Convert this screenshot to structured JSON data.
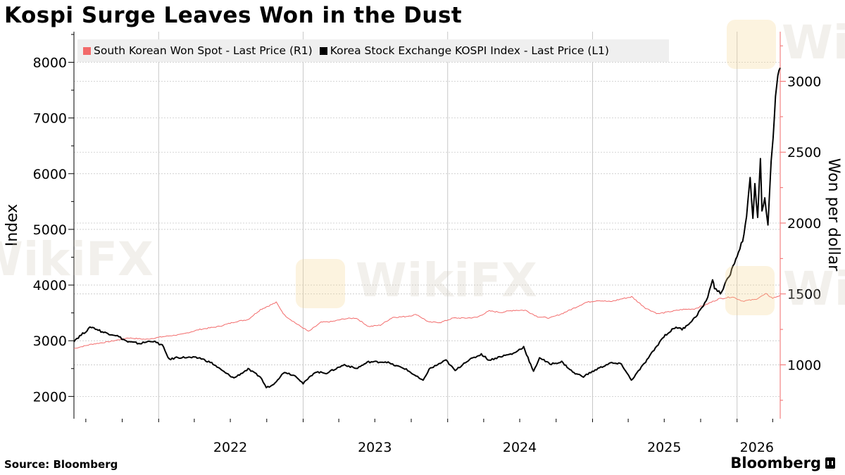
{
  "header": {
    "title": "Kospi Surge Leaves Won in the Dust"
  },
  "footer": {
    "source": "Source: Bloomberg",
    "brand": "Bloomberg"
  },
  "watermark": {
    "text": "WikiFX"
  },
  "colors": {
    "won": "#f26a6a",
    "kospi": "#000000",
    "axis_right": "#f26a6a",
    "grid": "#c8c8c8",
    "legend_bg": "#efefef"
  },
  "chart_data": {
    "type": "line",
    "title": "Kospi Surge Leaves Won in the Dust",
    "legend": {
      "placement": "top-left",
      "items": [
        {
          "name": "South Korean Won Spot - Last Price (R1)",
          "color": "#f26a6a"
        },
        {
          "name": "Korea Stock Exchange KOSPI Index - Last Price (L1)",
          "color": "#000000"
        }
      ]
    },
    "grid": true,
    "x": {
      "range": [
        "2021-06-01",
        "2026-04-20"
      ],
      "tick_labels": [
        "2022",
        "2023",
        "2024",
        "2025",
        "2026"
      ]
    },
    "y_left": {
      "label": "Index",
      "range": [
        1600,
        8550
      ],
      "ticks": [
        2000,
        3000,
        4000,
        5000,
        6000,
        7000,
        8000
      ]
    },
    "y_right": {
      "label": "Won per dollar",
      "range": [
        620,
        3350
      ],
      "ticks": [
        1000,
        1500,
        2000,
        2500,
        3000
      ]
    },
    "series": [
      {
        "name": "South Korean Won Spot - Last Price (R1)",
        "axis": "right",
        "points": [
          [
            "2021-06-01",
            1115
          ],
          [
            "2021-07-15",
            1145
          ],
          [
            "2021-09-01",
            1165
          ],
          [
            "2021-10-15",
            1190
          ],
          [
            "2021-12-01",
            1180
          ],
          [
            "2022-01-15",
            1200
          ],
          [
            "2022-03-01",
            1215
          ],
          [
            "2022-04-15",
            1250
          ],
          [
            "2022-06-01",
            1270
          ],
          [
            "2022-07-15",
            1305
          ],
          [
            "2022-08-15",
            1320
          ],
          [
            "2022-09-15",
            1390
          ],
          [
            "2022-10-25",
            1440
          ],
          [
            "2022-11-15",
            1350
          ],
          [
            "2022-12-15",
            1290
          ],
          [
            "2023-01-15",
            1235
          ],
          [
            "2023-02-15",
            1300
          ],
          [
            "2023-03-15",
            1305
          ],
          [
            "2023-04-15",
            1325
          ],
          [
            "2023-05-15",
            1330
          ],
          [
            "2023-06-15",
            1270
          ],
          [
            "2023-07-15",
            1280
          ],
          [
            "2023-08-15",
            1335
          ],
          [
            "2023-09-15",
            1340
          ],
          [
            "2023-10-15",
            1355
          ],
          [
            "2023-11-15",
            1300
          ],
          [
            "2023-12-15",
            1300
          ],
          [
            "2024-01-15",
            1330
          ],
          [
            "2024-02-15",
            1330
          ],
          [
            "2024-03-15",
            1335
          ],
          [
            "2024-04-15",
            1380
          ],
          [
            "2024-05-15",
            1370
          ],
          [
            "2024-06-15",
            1385
          ],
          [
            "2024-07-15",
            1385
          ],
          [
            "2024-08-15",
            1340
          ],
          [
            "2024-09-15",
            1330
          ],
          [
            "2024-10-15",
            1360
          ],
          [
            "2024-11-15",
            1400
          ],
          [
            "2024-12-15",
            1440
          ],
          [
            "2025-01-15",
            1455
          ],
          [
            "2025-02-15",
            1445
          ],
          [
            "2025-03-15",
            1465
          ],
          [
            "2025-04-10",
            1480
          ],
          [
            "2025-05-15",
            1400
          ],
          [
            "2025-06-15",
            1360
          ],
          [
            "2025-07-15",
            1375
          ],
          [
            "2025-08-15",
            1390
          ],
          [
            "2025-09-15",
            1395
          ],
          [
            "2025-10-15",
            1425
          ],
          [
            "2025-11-15",
            1465
          ],
          [
            "2025-12-20",
            1480
          ],
          [
            "2026-01-15",
            1450
          ],
          [
            "2026-02-15",
            1460
          ],
          [
            "2026-03-15",
            1500
          ],
          [
            "2026-04-01",
            1470
          ],
          [
            "2026-04-20",
            1490
          ]
        ]
      },
      {
        "name": "Korea Stock Exchange KOSPI Index - Last Price (L1)",
        "axis": "left",
        "points": [
          [
            "2021-06-01",
            3000
          ],
          [
            "2021-07-15",
            3250
          ],
          [
            "2021-08-15",
            3150
          ],
          [
            "2021-09-15",
            3100
          ],
          [
            "2021-10-15",
            2980
          ],
          [
            "2021-11-15",
            2950
          ],
          [
            "2021-12-15",
            3000
          ],
          [
            "2022-01-10",
            2920
          ],
          [
            "2022-01-28",
            2660
          ],
          [
            "2022-02-15",
            2700
          ],
          [
            "2022-03-15",
            2700
          ],
          [
            "2022-04-15",
            2690
          ],
          [
            "2022-05-15",
            2600
          ],
          [
            "2022-06-15",
            2440
          ],
          [
            "2022-07-10",
            2330
          ],
          [
            "2022-08-15",
            2490
          ],
          [
            "2022-09-15",
            2350
          ],
          [
            "2022-09-30",
            2160
          ],
          [
            "2022-10-15",
            2200
          ],
          [
            "2022-11-15",
            2440
          ],
          [
            "2022-12-15",
            2360
          ],
          [
            "2023-01-01",
            2230
          ],
          [
            "2023-01-31",
            2440
          ],
          [
            "2023-03-01",
            2420
          ],
          [
            "2023-04-15",
            2570
          ],
          [
            "2023-05-15",
            2500
          ],
          [
            "2023-06-15",
            2620
          ],
          [
            "2023-07-31",
            2620
          ],
          [
            "2023-08-15",
            2570
          ],
          [
            "2023-09-15",
            2500
          ],
          [
            "2023-10-31",
            2280
          ],
          [
            "2023-11-15",
            2490
          ],
          [
            "2023-12-28",
            2650
          ],
          [
            "2024-01-20",
            2460
          ],
          [
            "2024-02-15",
            2620
          ],
          [
            "2024-03-26",
            2760
          ],
          [
            "2024-04-15",
            2650
          ],
          [
            "2024-05-15",
            2720
          ],
          [
            "2024-06-15",
            2770
          ],
          [
            "2024-07-11",
            2890
          ],
          [
            "2024-08-05",
            2440
          ],
          [
            "2024-08-20",
            2700
          ],
          [
            "2024-09-15",
            2580
          ],
          [
            "2024-10-15",
            2620
          ],
          [
            "2024-11-15",
            2420
          ],
          [
            "2024-12-09",
            2360
          ],
          [
            "2025-01-15",
            2500
          ],
          [
            "2025-02-15",
            2600
          ],
          [
            "2025-03-15",
            2580
          ],
          [
            "2025-04-09",
            2290
          ],
          [
            "2025-05-15",
            2620
          ],
          [
            "2025-06-30",
            3080
          ],
          [
            "2025-07-31",
            3250
          ],
          [
            "2025-08-15",
            3200
          ],
          [
            "2025-09-15",
            3400
          ],
          [
            "2025-10-15",
            3700
          ],
          [
            "2025-10-31",
            4100
          ],
          [
            "2025-11-05",
            3950
          ],
          [
            "2025-11-20",
            3850
          ],
          [
            "2025-12-15",
            4200
          ],
          [
            "2026-01-15",
            4800
          ],
          [
            "2026-01-25",
            5200
          ],
          [
            "2026-02-03",
            5950
          ],
          [
            "2026-02-10",
            5200
          ],
          [
            "2026-02-15",
            5800
          ],
          [
            "2026-02-22",
            5200
          ],
          [
            "2026-03-01",
            6250
          ],
          [
            "2026-03-05",
            5300
          ],
          [
            "2026-03-12",
            5600
          ],
          [
            "2026-03-20",
            5050
          ],
          [
            "2026-03-28",
            6200
          ],
          [
            "2026-04-02",
            6650
          ],
          [
            "2026-04-08",
            7400
          ],
          [
            "2026-04-14",
            7750
          ],
          [
            "2026-04-20",
            7900
          ]
        ]
      }
    ]
  }
}
